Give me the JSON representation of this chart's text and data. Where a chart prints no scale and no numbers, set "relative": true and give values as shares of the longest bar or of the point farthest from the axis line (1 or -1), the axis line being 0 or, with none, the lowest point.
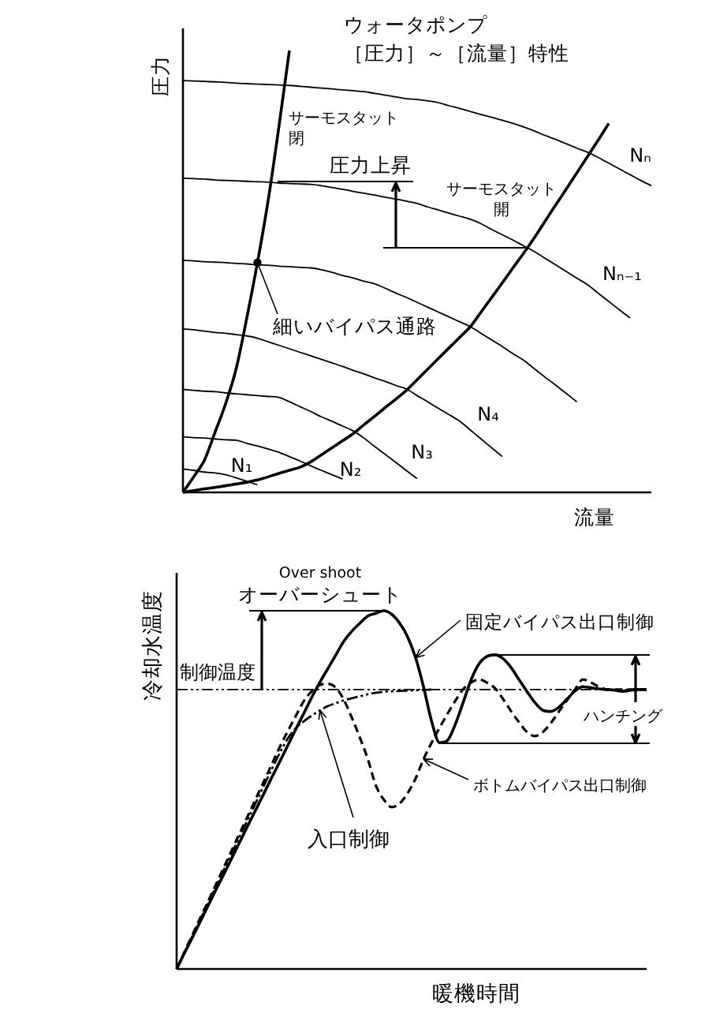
{
  "chart_data": [
    {
      "type": "line",
      "title": "ウォータポンプ",
      "subtitle": "［圧力］～［流量］特性",
      "xlabel": "流量",
      "ylabel": "圧力",
      "relative": true,
      "categories": [
        null,
        null,
        null,
        null,
        null,
        null,
        null,
        null,
        null,
        null,
        null,
        null,
        null,
        null,
        null,
        null,
        null,
        null,
        null,
        null,
        null,
        null,
        null,
        null,
        null,
        null,
        null,
        null,
        null,
        null,
        null,
        null,
        null,
        null,
        null,
        null,
        null,
        null,
        null,
        null,
        null,
        null,
        null,
        null,
        null
      ],
      "series": [
        {
          "name": "N₁",
          "color": "#000000",
          "values": [
            0.053,
            0.05,
            0.046,
            0.044,
            0.04,
            0.033,
            0.025,
            0.017,
            null,
            null,
            null,
            null,
            null,
            null,
            null,
            null,
            null,
            null,
            null,
            null,
            null,
            null,
            null,
            null,
            null,
            null,
            null,
            null,
            null,
            null,
            null,
            null,
            null,
            null,
            null,
            null,
            null,
            null,
            null,
            null,
            null,
            null,
            null,
            null,
            null
          ]
        },
        {
          "name": "N₂",
          "color": "#000000",
          "values": [
            0.126,
            0.124,
            0.123,
            0.121,
            0.119,
            0.118,
            0.111,
            0.105,
            0.098,
            0.091,
            0.081,
            0.071,
            0.06,
            0.05,
            0.04,
            0.03,
            null,
            null,
            null,
            null,
            null,
            null,
            null,
            null,
            null,
            null,
            null,
            null,
            null,
            null,
            null,
            null,
            null,
            null,
            null,
            null,
            null,
            null,
            null,
            null,
            null,
            null,
            null,
            null,
            null
          ]
        },
        {
          "name": "N₃",
          "color": "#000000",
          "values": [
            0.233,
            0.231,
            0.229,
            0.228,
            0.225,
            0.223,
            0.221,
            0.219,
            0.217,
            0.215,
            0.205,
            0.194,
            0.183,
            0.171,
            0.161,
            0.15,
            0.139,
            0.123,
            0.104,
            0.086,
            0.068,
            0.049,
            0.031,
            null,
            null,
            null,
            null,
            null,
            null,
            null,
            null,
            null,
            null,
            null,
            null,
            null,
            null,
            null,
            null,
            null,
            null,
            null,
            null,
            null,
            null
          ]
        },
        {
          "name": "N₄",
          "color": "#000000",
          "values": [
            0.37,
            0.368,
            0.365,
            0.362,
            0.36,
            0.357,
            0.354,
            0.349,
            0.341,
            0.333,
            0.325,
            0.317,
            0.309,
            0.301,
            0.293,
            0.285,
            0.276,
            0.268,
            0.259,
            0.251,
            0.242,
            0.234,
            0.219,
            0.205,
            0.19,
            0.176,
            0.161,
            0.141,
            0.121,
            0.101,
            0.081,
            null,
            null,
            null,
            null,
            null,
            null,
            null,
            null,
            null,
            null,
            null,
            null,
            null,
            null
          ]
        },
        {
          "color": "#000000",
          "values": [
            0.525,
            0.524,
            0.522,
            0.521,
            0.52,
            0.518,
            0.517,
            0.515,
            0.514,
            0.512,
            0.511,
            0.509,
            0.508,
            0.504,
            0.498,
            0.491,
            0.485,
            0.478,
            0.472,
            0.462,
            0.451,
            0.441,
            0.43,
            0.419,
            0.408,
            0.397,
            0.386,
            0.375,
            0.36,
            0.345,
            0.33,
            0.314,
            0.299,
            0.28,
            0.261,
            0.243,
            0.224,
            0.205,
            null,
            null,
            null,
            null,
            null,
            null,
            null
          ]
        },
        {
          "name": "Nₙ₋₁",
          "color": "#000000",
          "values": [
            0.711,
            0.71,
            0.709,
            0.707,
            0.706,
            0.705,
            0.704,
            0.703,
            0.702,
            0.7,
            0.699,
            0.698,
            0.697,
            0.694,
            0.69,
            0.686,
            0.681,
            0.677,
            0.673,
            0.668,
            0.664,
            0.659,
            0.654,
            0.646,
            0.639,
            0.632,
            0.625,
            0.618,
            0.608,
            0.595,
            0.583,
            0.571,
            0.558,
            0.545,
            0.53,
            0.515,
            0.5,
            0.485,
            0.47,
            0.451,
            0.432,
            0.413,
            0.395,
            null,
            null
          ]
        },
        {
          "name": "Nₙ",
          "color": "#000000",
          "values": [
            0.932,
            0.931,
            0.93,
            0.929,
            0.928,
            0.926,
            0.925,
            0.924,
            0.923,
            0.922,
            0.921,
            0.919,
            0.917,
            0.915,
            0.913,
            0.911,
            0.909,
            0.907,
            0.903,
            0.899,
            0.895,
            0.891,
            0.889,
            0.886,
            0.882,
            0.875,
            0.869,
            0.862,
            0.855,
            0.849,
            0.842,
            0.835,
            0.827,
            0.818,
            0.808,
            0.799,
            0.789,
            0.779,
            0.77,
            0.758,
            0.745,
            0.732,
            0.719,
            0.706,
            0.694
          ]
        },
        {
          "name": "サーモスタット閉",
          "color": "#000000",
          "values": [
            0,
            0.035,
            0.072,
            0.135,
            0.2,
            0.28,
            0.395,
            0.52,
            0.66,
            0.825,
            1,
            null,
            null,
            null,
            null,
            null,
            null,
            null,
            null,
            null,
            null,
            null,
            null,
            null,
            null,
            null,
            null,
            null,
            null,
            null,
            null,
            null,
            null,
            null,
            null,
            null,
            null,
            null,
            null,
            null,
            null,
            null,
            null,
            null,
            null
          ]
        },
        {
          "name": "サーモスタット開",
          "color": "#000000",
          "values": [
            0,
            0.004,
            0.008,
            0.011,
            0.015,
            0.019,
            0.023,
            0.028,
            0.035,
            0.043,
            0.05,
            0.057,
            0.069,
            0.085,
            0.101,
            0.117,
            0.133,
            0.153,
            0.172,
            0.192,
            0.211,
            0.231,
            0.255,
            0.279,
            0.303,
            0.327,
            0.351,
            0.375,
            0.408,
            0.441,
            0.474,
            0.508,
            0.541,
            0.576,
            0.613,
            0.65,
            0.686,
            0.723,
            0.76,
            0.797,
            0.835,
            null,
            null,
            null,
            null
          ]
        },
        {
          "name": "細いバイパス通路",
          "marker": "circle",
          "color": "#000000",
          "values": [
            null,
            null,
            null,
            null,
            null,
            null,
            null,
            0.52,
            null,
            null,
            null,
            null,
            null,
            null,
            null,
            null,
            null,
            null,
            null,
            null,
            null,
            null,
            null,
            null,
            null,
            null,
            null,
            null,
            null,
            null,
            null,
            null,
            null,
            null,
            null,
            null,
            null,
            null,
            null,
            null,
            null,
            null,
            null,
            null,
            null
          ]
        }
      ],
      "annotations": [
        "圧力上昇"
      ]
    },
    {
      "type": "line",
      "xlabel": "暖機時間",
      "ylabel": "冷却水温度",
      "relative": true,
      "categories": [
        null,
        null,
        null,
        null,
        null,
        null,
        null,
        null,
        null,
        null,
        null,
        null,
        null,
        null,
        null,
        null,
        null,
        null,
        null,
        null,
        null,
        null,
        null,
        null,
        null,
        null,
        null,
        null,
        null,
        null,
        null,
        null,
        null,
        null,
        null,
        null,
        null,
        null,
        null,
        null,
        null,
        null,
        null,
        null,
        null,
        null,
        null,
        null,
        null,
        null,
        null,
        null,
        null,
        null,
        null,
        null,
        null,
        null,
        null,
        null
      ],
      "series": [
        {
          "name": "固定バイパス出口制御",
          "color": "#000000",
          "line_style": "solid",
          "values": [
            0,
            0.045,
            0.089,
            0.134,
            0.179,
            0.224,
            0.268,
            0.313,
            0.358,
            0.403,
            0.447,
            0.492,
            0.537,
            0.581,
            0.626,
            0.671,
            0.715,
            0.76,
            0.801,
            0.839,
            0.877,
            0.915,
            0.943,
            0.965,
            0.985,
            0.993,
            1,
            0.99,
            0.965,
            0.927,
            0.869,
            0.787,
            0.692,
            0.632,
            0.638,
            0.684,
            0.746,
            0.809,
            0.853,
            0.873,
            0.877,
            0.866,
            0.841,
            0.807,
            0.774,
            0.743,
            0.722,
            0.719,
            0.731,
            0.753,
            0.776,
            0.788,
            0.785,
            0.782,
            0.78,
            0.778,
            0.775,
            0.778,
            0.78,
            0.78
          ]
        },
        {
          "color": "#000000",
          "line_style": "dashed",
          "values": [
            0,
            0.048,
            0.096,
            0.144,
            0.191,
            0.239,
            0.287,
            0.335,
            0.383,
            0.43,
            0.478,
            0.526,
            0.574,
            0.622,
            0.666,
            0.708,
            0.749,
            0.776,
            0.793,
            0.796,
            0.785,
            0.751,
            0.701,
            0.646,
            0.586,
            0.513,
            0.473,
            0.452,
            0.462,
            0.491,
            0.532,
            0.586,
            0.631,
            0.673,
            0.712,
            0.749,
            0.782,
            0.8,
            0.808,
            0.799,
            0.783,
            0.753,
            0.719,
            0.688,
            0.661,
            0.65,
            0.662,
            0.687,
            0.719,
            0.75,
            0.78,
            0.808,
            0.8,
            0.788,
            0.78,
            0.78,
            0.78,
            0.78,
            0.78,
            0.78
          ]
        },
        {
          "color": "#000000",
          "line_style": "dotted",
          "values": [
            0,
            0.047,
            0.093,
            0.14,
            0.187,
            0.233,
            0.28,
            0.327,
            0.374,
            0.42,
            0.467,
            0.514,
            0.56,
            0.605,
            0.645,
            0.673,
            0.692,
            0.708,
            0.722,
            0.734,
            0.742,
            0.75,
            0.756,
            0.761,
            0.767,
            0.771,
            0.774,
            0.775,
            0.776,
            0.777,
            0.778,
            0.779,
            0.78,
            null,
            null,
            null,
            null,
            null,
            null,
            null,
            null,
            null,
            null,
            null,
            null,
            null,
            null,
            null,
            null,
            null,
            null,
            null,
            null,
            null,
            null,
            null,
            null,
            null,
            null,
            null
          ]
        }
      ],
      "ref_lines": [
        {
          "axis": "y",
          "value": 0.78,
          "label": "制御温度",
          "line_style": "dotted",
          "color": "#000000"
        }
      ],
      "annotations": [
        "Over shoot",
        "オーバーシュート",
        "ハンチング",
        "ボトムバイパス出口制御",
        "入口制御"
      ]
    }
  ]
}
